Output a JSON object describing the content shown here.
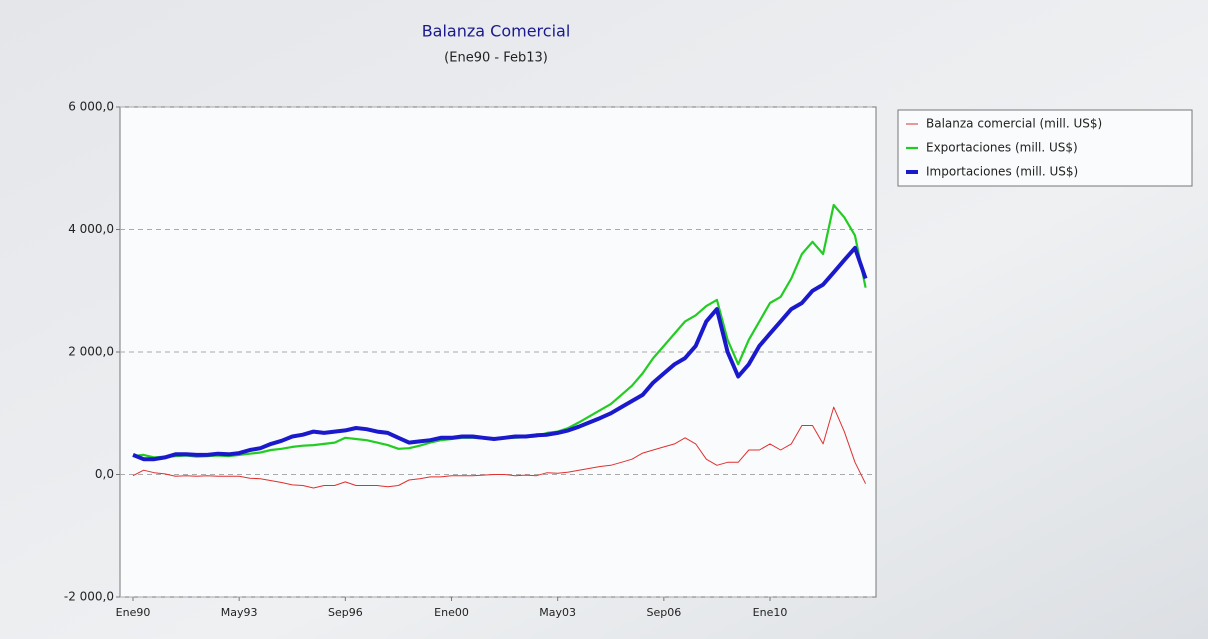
{
  "chart_data": {
    "type": "line",
    "title": "Balanza Comercial",
    "subtitle": "(Ene90 - Feb13)",
    "categories": [
      "Ene90",
      null,
      null,
      null,
      null,
      null,
      null,
      null,
      null,
      null,
      "May93",
      null,
      null,
      null,
      null,
      null,
      null,
      null,
      null,
      null,
      "Sep96",
      null,
      null,
      null,
      null,
      null,
      null,
      null,
      null,
      null,
      "Ene00",
      null,
      null,
      null,
      null,
      null,
      null,
      null,
      null,
      null,
      "May03",
      null,
      null,
      null,
      null,
      null,
      null,
      null,
      null,
      null,
      "Sep06",
      null,
      null,
      null,
      null,
      null,
      null,
      null,
      null,
      null,
      "Ene10",
      null,
      null,
      null,
      null,
      null,
      null,
      null,
      null,
      null
    ],
    "series": [
      {
        "name": "Balanza comercial (mill. US$)",
        "color": "#e03030",
        "values": [
          -20,
          70,
          30,
          10,
          -30,
          -20,
          -30,
          -20,
          -30,
          -30,
          -30,
          -60,
          -70,
          -100,
          -130,
          -170,
          -180,
          -220,
          -180,
          -180,
          -120,
          -180,
          -180,
          -180,
          -200,
          -180,
          -90,
          -70,
          -40,
          -40,
          -20,
          -20,
          -20,
          -10,
          0,
          0,
          -20,
          -10,
          -20,
          30,
          20,
          40,
          70,
          100,
          130,
          150,
          200,
          250,
          350,
          400,
          450,
          500,
          600,
          500,
          250,
          150,
          200,
          200,
          400,
          400,
          500,
          400,
          500,
          800,
          800,
          500,
          1100,
          700,
          200,
          -150
        ]
      },
      {
        "name": "Exportaciones (mill. US$)",
        "color": "#22cc22",
        "values": [
          300,
          320,
          280,
          290,
          300,
          310,
          290,
          300,
          310,
          300,
          320,
          340,
          360,
          400,
          420,
          450,
          470,
          480,
          500,
          520,
          600,
          580,
          560,
          520,
          480,
          420,
          430,
          470,
          520,
          560,
          580,
          600,
          600,
          590,
          580,
          600,
          600,
          610,
          620,
          680,
          700,
          760,
          850,
          950,
          1050,
          1150,
          1300,
          1450,
          1650,
          1900,
          2100,
          2300,
          2500,
          2600,
          2750,
          2850,
          2200,
          1800,
          2200,
          2500,
          2800,
          2900,
          3200,
          3600,
          3800,
          3600,
          4400,
          4200,
          3900,
          3050
        ]
      },
      {
        "name": "Importaciones (mill. US$)",
        "color": "#1a1acc",
        "values": [
          320,
          250,
          250,
          280,
          330,
          330,
          320,
          320,
          340,
          330,
          350,
          400,
          430,
          500,
          550,
          620,
          650,
          700,
          680,
          700,
          720,
          760,
          740,
          700,
          680,
          600,
          520,
          540,
          560,
          600,
          600,
          620,
          620,
          600,
          580,
          600,
          620,
          620,
          640,
          650,
          680,
          720,
          780,
          850,
          920,
          1000,
          1100,
          1200,
          1300,
          1500,
          1650,
          1800,
          1900,
          2100,
          2500,
          2700,
          2000,
          1600,
          1800,
          2100,
          2300,
          2500,
          2700,
          2800,
          3000,
          3100,
          3300,
          3500,
          3700,
          3200
        ]
      }
    ],
    "ylim": [
      -2000,
      6000
    ],
    "yticks": [
      {
        "value": -2000,
        "label": "-2 000,0"
      },
      {
        "value": 0,
        "label": "0,0"
      },
      {
        "value": 2000,
        "label": "2 000,0"
      },
      {
        "value": 4000,
        "label": "4 000,0"
      },
      {
        "value": 6000,
        "label": "6 000,0"
      }
    ],
    "grid": true,
    "legend": "right"
  }
}
